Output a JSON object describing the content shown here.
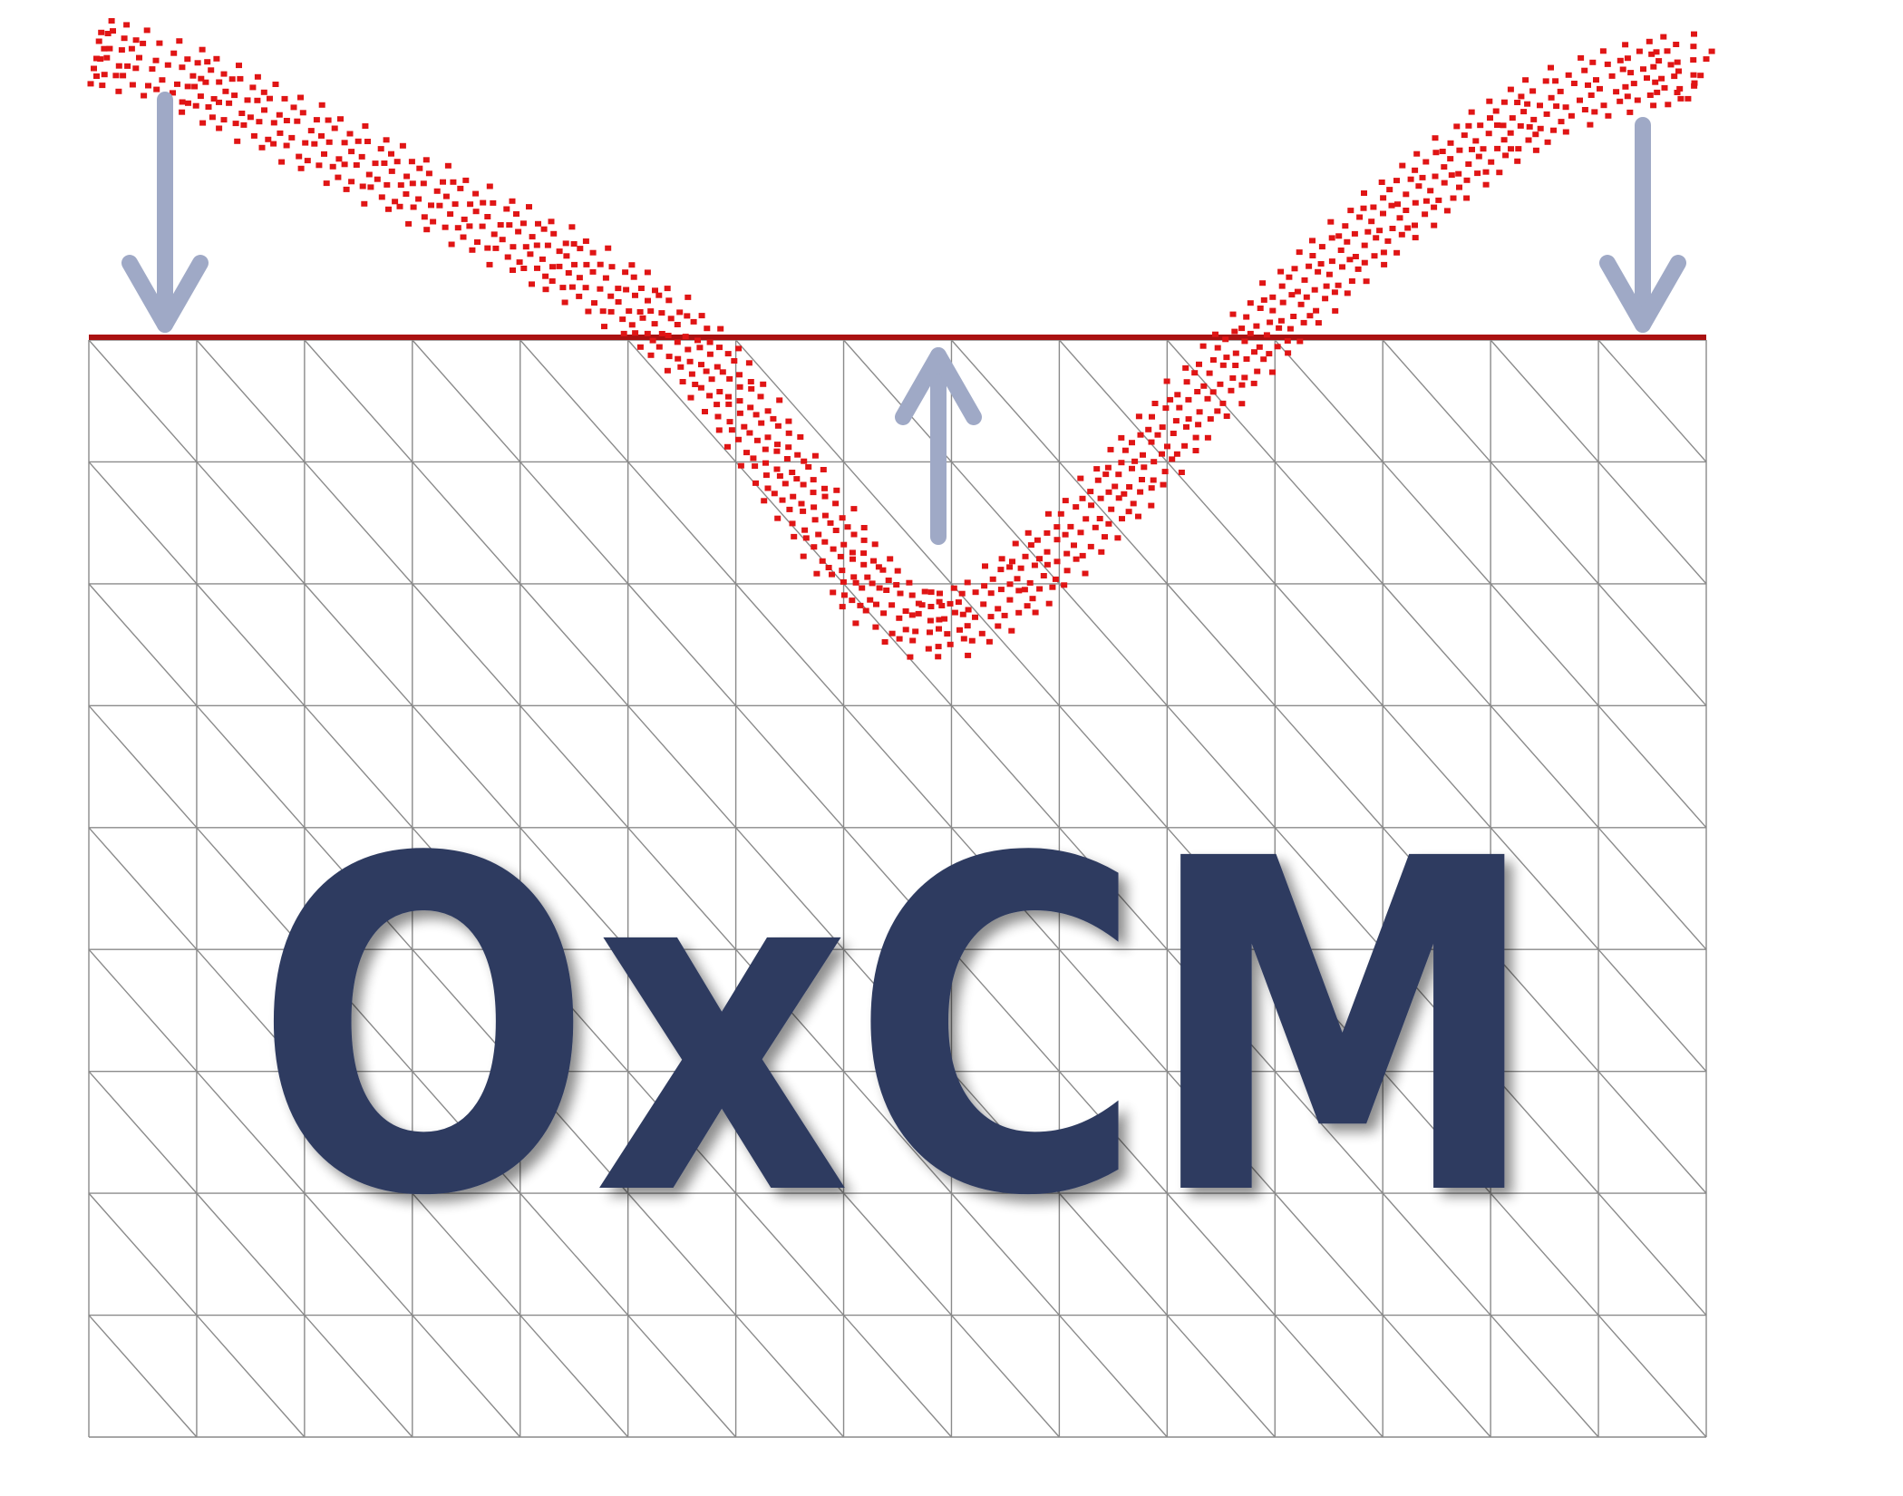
{
  "logo": {
    "title": "OxCM"
  },
  "colors": {
    "background": "#ffffff",
    "mesh_line": "#8a8a8a",
    "surface_line": "#aa1111",
    "particles": "#e01515",
    "arrow": "#9fa9c6",
    "text": "#2d3a60",
    "text_shadow": "#9a9a9a"
  },
  "icons": {
    "arrow_left": "arrow-down-icon",
    "arrow_center": "arrow-up-icon",
    "arrow_right": "arrow-down-icon"
  }
}
